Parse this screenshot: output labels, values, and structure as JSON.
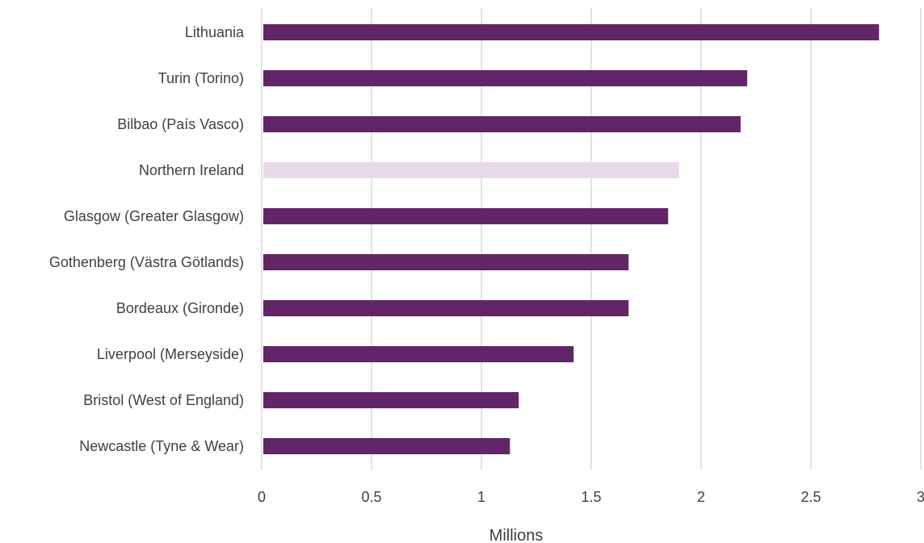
{
  "chart_data": {
    "type": "bar",
    "orientation": "horizontal",
    "categories": [
      "Lithuania",
      "Turin (Torino)",
      "Bilbao (País Vasco)",
      "Northern Ireland",
      "Glasgow (Greater Glasgow)",
      "Gothenberg (Västra Götlands)",
      "Bordeaux (Gironde)",
      "Liverpool (Merseyside)",
      "Bristol (West of England)",
      "Newcastle (Tyne & Wear)"
    ],
    "values": [
      2.81,
      2.21,
      2.18,
      1.9,
      1.85,
      1.67,
      1.67,
      1.42,
      1.17,
      1.13
    ],
    "highlight_category": "Northern Ireland",
    "colors": {
      "bar": "#622567",
      "highlight": "#ead9ec"
    },
    "xlabel": "Millions",
    "ylabel": "",
    "xlim": [
      0,
      3
    ],
    "xticks": [
      0,
      0.5,
      1,
      1.5,
      2,
      2.5,
      3
    ],
    "xtick_labels": [
      "0",
      "0.5",
      "1",
      "1.5",
      "2",
      "2.5",
      "3"
    ],
    "grid": "vertical",
    "legend": "none"
  }
}
